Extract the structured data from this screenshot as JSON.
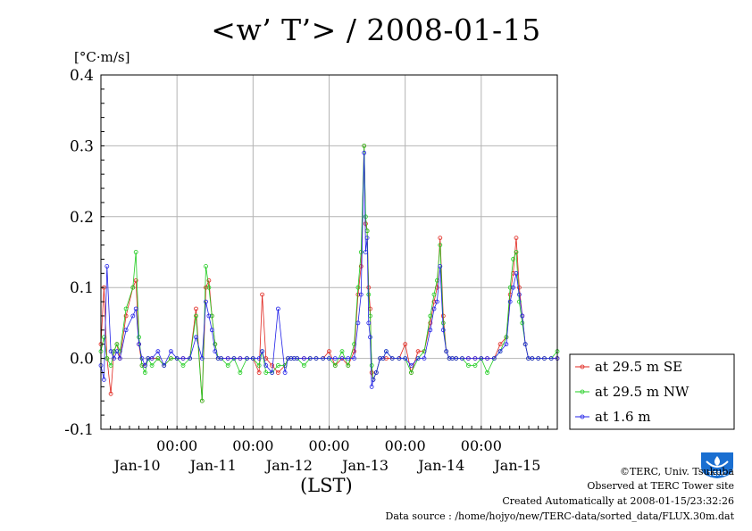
{
  "title": "<w’ T’> / 2008-01-15",
  "unit_label": "[°C·m/s]",
  "x_axis_label": "(LST)",
  "footer": {
    "copyright": "©TERC, Univ. Tsukuba",
    "site": "Observed at TERC Tower site",
    "created": "Created Automatically at 2008-01-15/23:32:26",
    "source": "Data source : /home/hojyo/new/TERC-data/sorted_data/FLUX.30m.dat"
  },
  "logo_text": "TERC",
  "colors": {
    "se": "#e0241c",
    "nw": "#1ecc1e",
    "low": "#2020e8",
    "grid": "#b4b4b4"
  },
  "chart_data": {
    "type": "line",
    "title": "<w’ T’> / 2008-01-15",
    "ylabel": "[°C·m/s]",
    "xlabel": "(LST)",
    "ylim": [
      -0.1,
      0.4
    ],
    "yticks": [
      "-0.1",
      "0.0",
      "0.1",
      "0.2",
      "0.3",
      "0.4"
    ],
    "yticks_values": [
      -0.1,
      0.0,
      0.1,
      0.2,
      0.3,
      0.4
    ],
    "xlim": [
      0,
      6
    ],
    "x_unit": "days since 2008-01-09 00:00 LST (30-min steps)",
    "xticks_time": [
      1,
      2,
      3,
      4,
      5
    ],
    "xticks_time_labels": [
      "00:00",
      "00:00",
      "00:00",
      "00:00",
      "00:00"
    ],
    "xticks_day_positions": [
      0.5,
      1.5,
      2.5,
      3.5,
      4.5,
      5.5
    ],
    "xticks_day_labels": [
      "Jan-10",
      "Jan-11",
      "Jan-12",
      "Jan-13",
      "Jan-14",
      "Jan-15"
    ],
    "grid": true,
    "legend_position": "right",
    "series": [
      {
        "name": "at 29.5 m SE",
        "color": "#e0241c",
        "x": [
          0.0,
          0.04,
          0.08,
          0.13,
          0.17,
          0.21,
          0.25,
          0.33,
          0.42,
          0.46,
          0.5,
          0.54,
          0.58,
          0.62,
          0.67,
          0.75,
          0.83,
          0.92,
          1.0,
          1.08,
          1.17,
          1.25,
          1.33,
          1.38,
          1.42,
          1.46,
          1.5,
          1.54,
          1.58,
          1.67,
          1.75,
          1.83,
          1.92,
          2.0,
          2.08,
          2.12,
          2.17,
          2.25,
          2.33,
          2.42,
          2.46,
          2.5,
          2.54,
          2.58,
          2.67,
          2.75,
          2.83,
          2.92,
          3.0,
          3.08,
          3.17,
          3.25,
          3.33,
          3.38,
          3.42,
          3.46,
          3.48,
          3.5,
          3.52,
          3.54,
          3.56,
          3.58,
          3.62,
          3.67,
          3.71,
          3.75,
          3.83,
          3.92,
          4.0,
          4.08,
          4.17,
          4.25,
          4.33,
          4.38,
          4.42,
          4.46,
          4.5,
          4.54,
          4.58,
          4.62,
          4.67,
          4.75,
          4.83,
          4.92,
          5.0,
          5.08,
          5.17,
          5.25,
          5.33,
          5.38,
          5.42,
          5.46,
          5.5,
          5.54,
          5.58,
          5.62,
          5.67,
          5.75,
          5.83,
          5.92,
          6.0
        ],
        "values": [
          0.02,
          0.1,
          0.0,
          -0.05,
          0.01,
          0.02,
          0.0,
          0.06,
          0.1,
          0.11,
          0.02,
          -0.01,
          -0.01,
          0.0,
          0.0,
          0.0,
          -0.01,
          0.0,
          0.0,
          0.0,
          0.0,
          0.07,
          -0.06,
          0.1,
          0.11,
          0.06,
          0.02,
          0.0,
          0.0,
          0.0,
          0.0,
          0.0,
          0.0,
          0.0,
          -0.02,
          0.09,
          0.0,
          -0.01,
          -0.02,
          -0.01,
          0.0,
          0.0,
          0.0,
          0.0,
          0.0,
          0.0,
          0.0,
          0.0,
          0.01,
          -0.01,
          0.0,
          -0.01,
          0.01,
          0.09,
          0.13,
          0.3,
          0.19,
          0.18,
          0.1,
          0.07,
          -0.02,
          -0.03,
          -0.02,
          0.0,
          0.0,
          0.0,
          0.0,
          0.0,
          0.02,
          -0.02,
          0.01,
          0.01,
          0.05,
          0.08,
          0.1,
          0.17,
          0.06,
          0.01,
          0.0,
          0.0,
          0.0,
          0.0,
          0.0,
          0.0,
          0.0,
          0.0,
          0.0,
          0.02,
          0.03,
          0.09,
          0.12,
          0.17,
          0.1,
          0.06,
          0.02,
          0.0,
          0.0,
          0.0,
          0.0,
          0.0,
          0.0
        ]
      },
      {
        "name": "at 29.5 m NW",
        "color": "#1ecc1e",
        "x": [
          0.0,
          0.04,
          0.08,
          0.13,
          0.17,
          0.21,
          0.25,
          0.33,
          0.42,
          0.46,
          0.5,
          0.54,
          0.58,
          0.62,
          0.67,
          0.75,
          0.83,
          0.92,
          1.0,
          1.08,
          1.17,
          1.25,
          1.33,
          1.38,
          1.42,
          1.46,
          1.5,
          1.54,
          1.58,
          1.67,
          1.75,
          1.83,
          1.92,
          2.0,
          2.08,
          2.12,
          2.17,
          2.25,
          2.33,
          2.42,
          2.46,
          2.5,
          2.54,
          2.58,
          2.67,
          2.75,
          2.83,
          2.92,
          3.0,
          3.08,
          3.17,
          3.25,
          3.33,
          3.38,
          3.42,
          3.46,
          3.48,
          3.5,
          3.52,
          3.54,
          3.56,
          3.58,
          3.62,
          3.67,
          3.71,
          3.75,
          3.83,
          3.92,
          4.0,
          4.08,
          4.17,
          4.25,
          4.33,
          4.38,
          4.42,
          4.46,
          4.5,
          4.54,
          4.58,
          4.62,
          4.67,
          4.75,
          4.83,
          4.92,
          5.0,
          5.08,
          5.17,
          5.25,
          5.33,
          5.38,
          5.42,
          5.46,
          5.5,
          5.54,
          5.58,
          5.62,
          5.67,
          5.75,
          5.83,
          5.92,
          6.0
        ],
        "values": [
          0.01,
          0.03,
          0.0,
          -0.01,
          0.01,
          0.02,
          0.01,
          0.07,
          0.1,
          0.15,
          0.03,
          -0.01,
          -0.02,
          0.0,
          -0.01,
          0.0,
          -0.01,
          0.0,
          0.0,
          -0.01,
          0.0,
          0.06,
          -0.06,
          0.13,
          0.1,
          0.06,
          0.02,
          0.0,
          0.0,
          -0.01,
          0.0,
          -0.02,
          0.0,
          0.0,
          -0.01,
          0.01,
          -0.02,
          -0.02,
          -0.01,
          -0.01,
          0.0,
          0.0,
          0.0,
          0.0,
          -0.01,
          0.0,
          0.0,
          0.0,
          0.0,
          -0.01,
          0.01,
          -0.01,
          0.02,
          0.1,
          0.15,
          0.3,
          0.2,
          0.18,
          0.09,
          0.06,
          -0.01,
          -0.03,
          -0.02,
          0.0,
          0.0,
          0.01,
          0.0,
          0.0,
          0.0,
          -0.02,
          0.0,
          0.01,
          0.06,
          0.09,
          0.11,
          0.16,
          0.05,
          0.01,
          0.0,
          0.0,
          0.0,
          0.0,
          -0.01,
          -0.01,
          0.0,
          -0.02,
          0.0,
          0.01,
          0.03,
          0.1,
          0.14,
          0.15,
          0.08,
          0.05,
          0.02,
          0.0,
          0.0,
          0.0,
          0.0,
          0.0,
          0.01
        ]
      },
      {
        "name": "at 1.6 m",
        "color": "#2020e8",
        "x": [
          0.0,
          0.04,
          0.08,
          0.13,
          0.17,
          0.21,
          0.25,
          0.33,
          0.42,
          0.46,
          0.5,
          0.54,
          0.58,
          0.62,
          0.67,
          0.75,
          0.83,
          0.92,
          1.0,
          1.08,
          1.17,
          1.25,
          1.33,
          1.38,
          1.42,
          1.46,
          1.5,
          1.54,
          1.58,
          1.67,
          1.75,
          1.83,
          1.92,
          2.0,
          2.08,
          2.12,
          2.17,
          2.25,
          2.33,
          2.42,
          2.46,
          2.5,
          2.54,
          2.58,
          2.67,
          2.75,
          2.83,
          2.92,
          3.0,
          3.08,
          3.17,
          3.25,
          3.33,
          3.38,
          3.42,
          3.46,
          3.48,
          3.5,
          3.52,
          3.54,
          3.56,
          3.58,
          3.62,
          3.67,
          3.71,
          3.75,
          3.83,
          3.92,
          4.0,
          4.08,
          4.17,
          4.25,
          4.33,
          4.38,
          4.42,
          4.46,
          4.5,
          4.54,
          4.58,
          4.62,
          4.67,
          4.75,
          4.83,
          4.92,
          5.0,
          5.08,
          5.17,
          5.25,
          5.33,
          5.38,
          5.42,
          5.46,
          5.5,
          5.54,
          5.58,
          5.62,
          5.67,
          5.75,
          5.83,
          5.92,
          6.0
        ],
        "values": [
          -0.01,
          -0.03,
          0.13,
          0.01,
          0.0,
          0.01,
          0.0,
          0.04,
          0.06,
          0.07,
          0.02,
          0.0,
          -0.01,
          0.0,
          0.0,
          0.01,
          -0.01,
          0.01,
          0.0,
          0.0,
          0.0,
          0.03,
          0.0,
          0.08,
          0.06,
          0.04,
          0.01,
          0.0,
          0.0,
          0.0,
          0.0,
          0.0,
          0.0,
          0.0,
          0.0,
          0.01,
          -0.01,
          -0.02,
          0.07,
          -0.02,
          0.0,
          0.0,
          0.0,
          0.0,
          0.0,
          0.0,
          0.0,
          0.0,
          0.0,
          0.0,
          0.0,
          0.0,
          0.0,
          0.05,
          0.09,
          0.29,
          0.15,
          0.17,
          0.05,
          0.03,
          -0.04,
          -0.03,
          -0.02,
          0.0,
          0.0,
          0.01,
          0.0,
          0.0,
          0.0,
          -0.01,
          0.0,
          0.0,
          0.04,
          0.07,
          0.08,
          0.13,
          0.04,
          0.01,
          0.0,
          0.0,
          0.0,
          0.0,
          0.0,
          0.0,
          0.0,
          0.0,
          0.0,
          0.01,
          0.02,
          0.08,
          0.1,
          0.12,
          0.09,
          0.06,
          0.02,
          0.0,
          0.0,
          0.0,
          0.0,
          0.0,
          0.0
        ]
      }
    ]
  }
}
